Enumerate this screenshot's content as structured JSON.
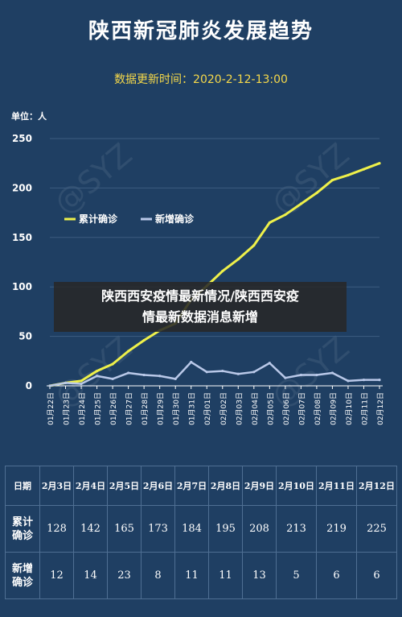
{
  "title": "陕西新冠肺炎发展趋势",
  "update_time": "数据更新时间：2020-2-12-13:00",
  "unit_label": "单位：人",
  "overlay_text_line1": "陕西西安疫情最新情况/陕西西安疫",
  "overlay_text_line2": "情最新数据消息新增",
  "watermark_text": "@SYZ",
  "colors": {
    "background": "#1f3f63",
    "cumulative": "#eef04a",
    "new": "#b9c8e8",
    "grid": "#3d5c80"
  },
  "chart_data": {
    "type": "line",
    "x": [
      "01月22日",
      "01月23日",
      "01月24日",
      "01月25日",
      "01月26日",
      "01月27日",
      "01月28日",
      "01月29日",
      "01月30日",
      "01月31日",
      "02月01日",
      "02月02日",
      "02月03日",
      "02月04日",
      "02月05日",
      "02月06日",
      "02月07日",
      "02月08日",
      "02月09日",
      "02月10日",
      "02月11日",
      "02月12日"
    ],
    "series": [
      {
        "name": "累计确诊",
        "values": [
          0,
          3,
          5,
          15,
          22,
          35,
          46,
          56,
          63,
          87,
          101,
          116,
          128,
          142,
          165,
          173,
          184,
          195,
          208,
          213,
          219,
          225
        ]
      },
      {
        "name": "新增确诊",
        "values": [
          0,
          3,
          2,
          10,
          7,
          13,
          11,
          10,
          7,
          24,
          14,
          15,
          12,
          14,
          23,
          8,
          11,
          11,
          13,
          5,
          6,
          6
        ]
      }
    ],
    "yticks": [
      0,
      50,
      100,
      150,
      200,
      250
    ],
    "ylim": [
      0,
      250
    ],
    "legend_position": "top-left",
    "grid": true
  },
  "table": {
    "header_label": "日期",
    "dates": [
      "2月3日",
      "2月4日",
      "2月5日",
      "2月6日",
      "2月7日",
      "2月8日",
      "2月9日",
      "2月10日",
      "2月11日",
      "2月12日"
    ],
    "cumulative_label": "累计\n确诊",
    "cumulative_values": [
      "128",
      "142",
      "165",
      "173",
      "184",
      "195",
      "208",
      "213",
      "219",
      "225"
    ],
    "new_label": "新增\n确诊",
    "new_values": [
      "12",
      "14",
      "23",
      "8",
      "11",
      "11",
      "13",
      "5",
      "6",
      "6"
    ]
  }
}
